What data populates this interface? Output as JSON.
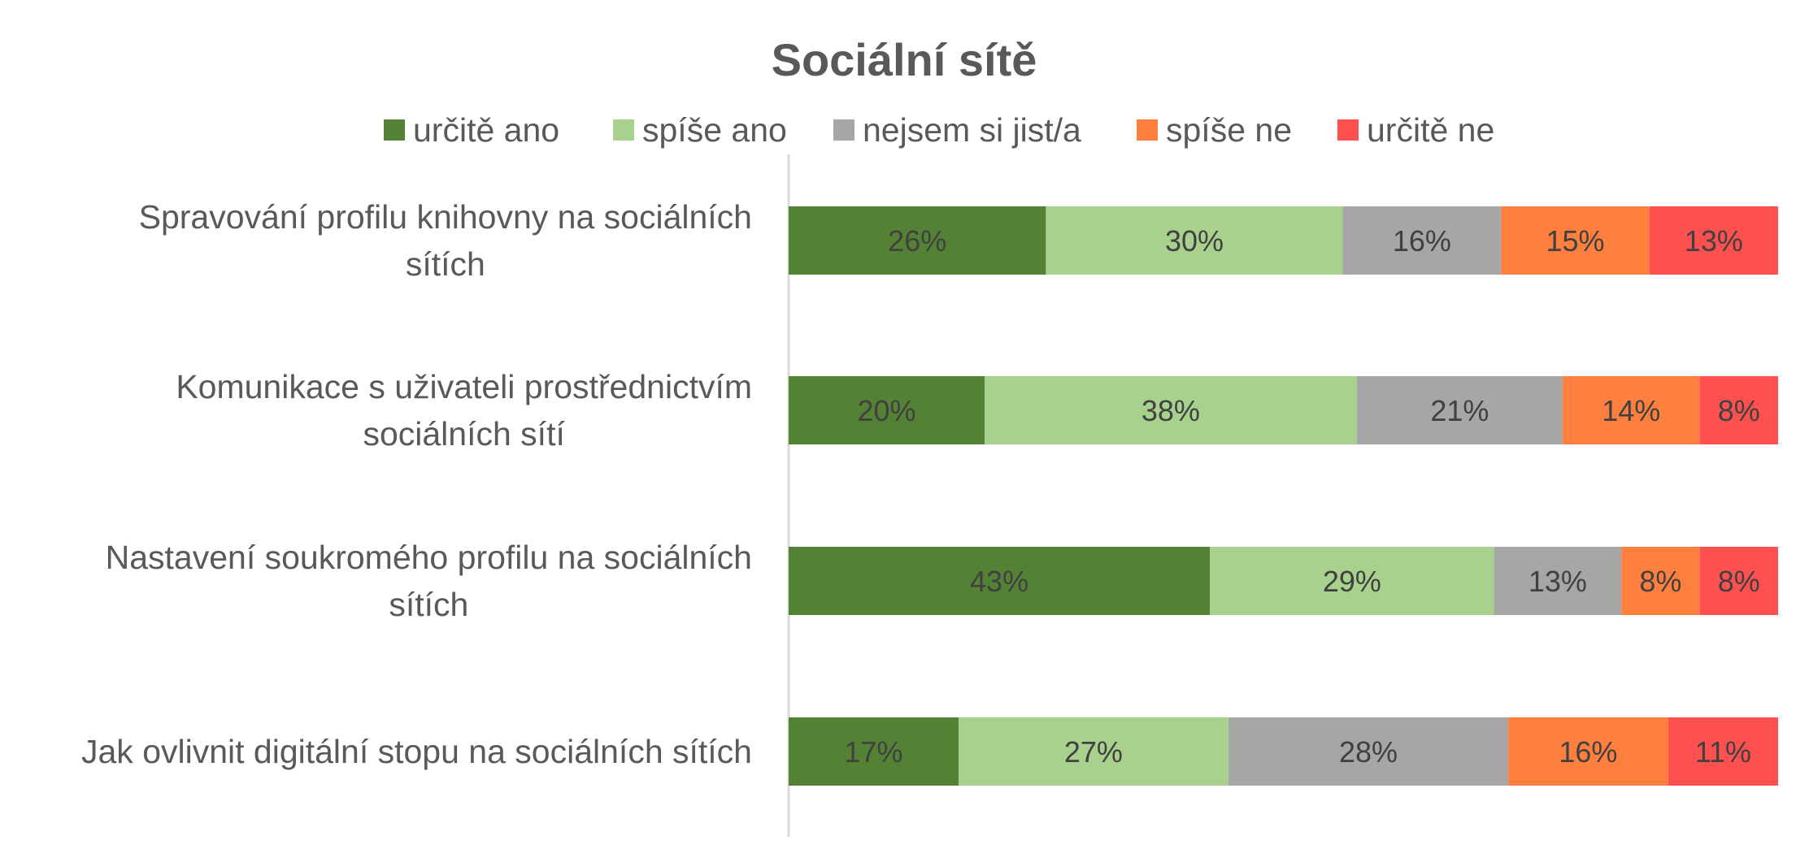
{
  "chart_data": {
    "type": "bar",
    "orientation": "horizontal",
    "stacked": "100%",
    "title": "Sociální sítě",
    "legend_position": "top",
    "categories": [
      [
        "Spravování profilu knihovny na sociálních",
        "sítích"
      ],
      [
        "Komunikace s uživateli prostřednictvím",
        "sociálních sítí"
      ],
      [
        "Nastavení soukromého profilu na sociálních",
        "sítích"
      ],
      [
        "Jak ovlivnit digitální stopu na sociálních sítích"
      ]
    ],
    "series": [
      {
        "name": "určitě ano",
        "color": "#548235",
        "values": [
          26,
          20,
          43,
          17
        ],
        "labels": [
          "26%",
          "20%",
          "43%",
          "17%"
        ]
      },
      {
        "name": "spíše ano",
        "color": "#A9D18E",
        "values": [
          30,
          38,
          29,
          27
        ],
        "labels": [
          "30%",
          "38%",
          "29%",
          "27%"
        ]
      },
      {
        "name": "nejsem si jist/a",
        "color": "#A6A6A6",
        "values": [
          16,
          21,
          13,
          28
        ],
        "labels": [
          "16%",
          "21%",
          "13%",
          "28%"
        ]
      },
      {
        "name": "spíše ne",
        "color": "#FF7F3F",
        "values": [
          15,
          14,
          8,
          16
        ],
        "labels": [
          "15%",
          "14%",
          "8%",
          "16%"
        ]
      },
      {
        "name": "určitě ne",
        "color": "#FF5050",
        "values": [
          13,
          8,
          8,
          11
        ],
        "labels": [
          "13%",
          "8%",
          "8%",
          "11%"
        ]
      }
    ],
    "xlim": [
      0,
      100
    ],
    "grid": false
  }
}
